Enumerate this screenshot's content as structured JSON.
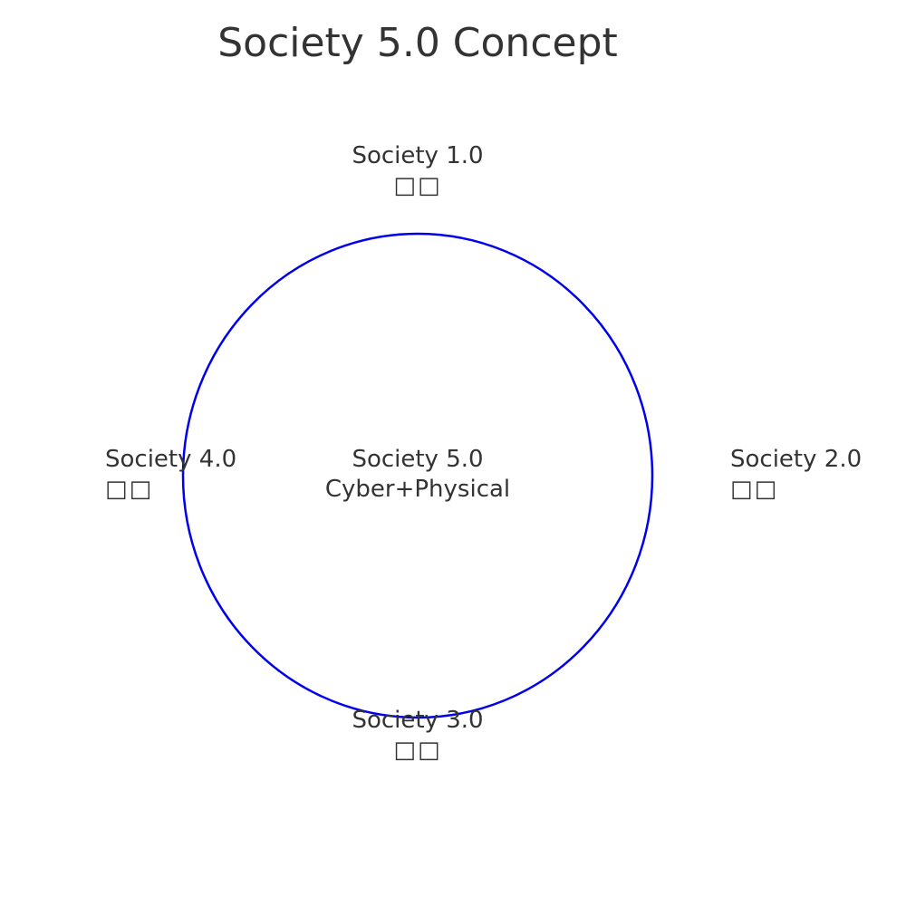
{
  "title": "Society 5.0 Concept",
  "colors": {
    "circle_stroke": "#0000ee",
    "text": "#333333",
    "background": "#ffffff"
  },
  "nodes": {
    "society1": {
      "label": "Society 1.0",
      "sub": "□□"
    },
    "society2": {
      "label": "Society 2.0",
      "sub": "□□"
    },
    "society3": {
      "label": "Society 3.0",
      "sub": "□□"
    },
    "society4": {
      "label": "Society 4.0",
      "sub": "□□"
    },
    "society5": {
      "label": "Society 5.0",
      "sub": "Cyber+Physical"
    }
  }
}
